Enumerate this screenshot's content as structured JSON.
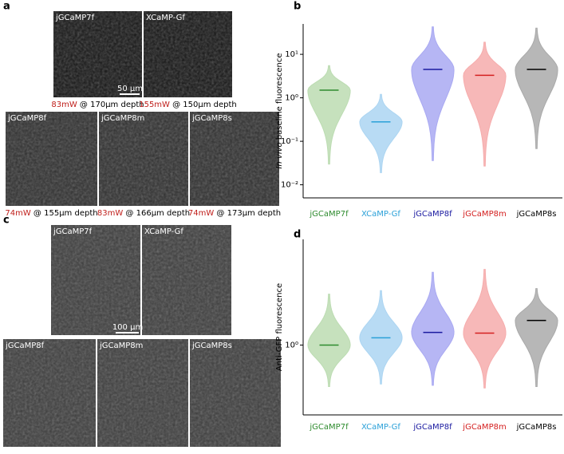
{
  "panel_labels": [
    "a",
    "b",
    "c",
    "d"
  ],
  "panel_a": {
    "scale_bar": "50 µm",
    "images": [
      {
        "label": "jGCaMP7f",
        "power": "83mW",
        "depth": " @ 170µm depth"
      },
      {
        "label": "XCaMP-Gf",
        "power": "155mW",
        "depth": " @ 150µm depth"
      },
      {
        "label": "jGCaMP8f",
        "power": "74mW",
        "depth": " @ 155µm depth"
      },
      {
        "label": "jGCaMP8m",
        "power": "83mW",
        "depth": " @ 166µm depth"
      },
      {
        "label": "jGCaMP8s",
        "power": "74mW",
        "depth": " @ 173µm depth"
      }
    ]
  },
  "panel_c": {
    "scale_bar": "100 µm",
    "images": [
      {
        "label": "jGCaMP7f"
      },
      {
        "label": "XCaMP-Gf"
      },
      {
        "label": "jGCaMP8f"
      },
      {
        "label": "jGCaMP8m"
      },
      {
        "label": "jGCaMP8s"
      }
    ]
  },
  "chart_data": [
    {
      "type": "violin",
      "ylabel_italic": "In vivo",
      "ylabel": " baseline fluorescence",
      "log_y": true,
      "categories": [
        "jGCaMP7f",
        "XCaMP-Gf",
        "jGCaMP8f",
        "jGCaMP8m",
        "jGCaMP8s"
      ],
      "colors": [
        "#2e8b2e",
        "#2aa0d8",
        "#1a1aa0",
        "#d42020",
        "#000000"
      ],
      "fill_colors": [
        "#bcdcb2",
        "#acd5f2",
        "#a9a9f2",
        "#f6acac",
        "#aaaaaa"
      ],
      "medians": [
        1.5,
        0.28,
        4.5,
        3.3,
        4.5
      ],
      "mins": [
        0.03,
        0.019,
        0.036,
        0.027,
        0.068
      ],
      "maxs": [
        5.5,
        1.2,
        43,
        19,
        40
      ],
      "ylim": [
        0.005,
        50
      ],
      "yticks": [
        {
          "value": 0.01,
          "label": "10⁻²"
        },
        {
          "value": 0.1,
          "label": "10⁻¹"
        },
        {
          "value": 1,
          "label": "10⁰"
        },
        {
          "value": 10,
          "label": "10¹"
        }
      ]
    },
    {
      "type": "violin",
      "ylabel": "Anti-GFP fluorescence",
      "log_y": true,
      "categories": [
        "jGCaMP7f",
        "XCaMP-Gf",
        "jGCaMP8f",
        "jGCaMP8m",
        "jGCaMP8s"
      ],
      "colors": [
        "#2e8b2e",
        "#2aa0d8",
        "#1a1aa0",
        "#d42020",
        "#000000"
      ],
      "fill_colors": [
        "#bcdcb2",
        "#acd5f2",
        "#a9a9f2",
        "#f6acac",
        "#aaaaaa"
      ],
      "medians": [
        1.0,
        1.1,
        1.18,
        1.17,
        1.38
      ],
      "mins": [
        0.58,
        0.6,
        0.59,
        0.57,
        0.58
      ],
      "maxs": [
        1.95,
        2.04,
        2.6,
        2.7,
        2.1
      ],
      "ylim": [
        0.4,
        4
      ],
      "yticks": [
        {
          "value": 1,
          "label": "10⁰"
        }
      ]
    }
  ]
}
